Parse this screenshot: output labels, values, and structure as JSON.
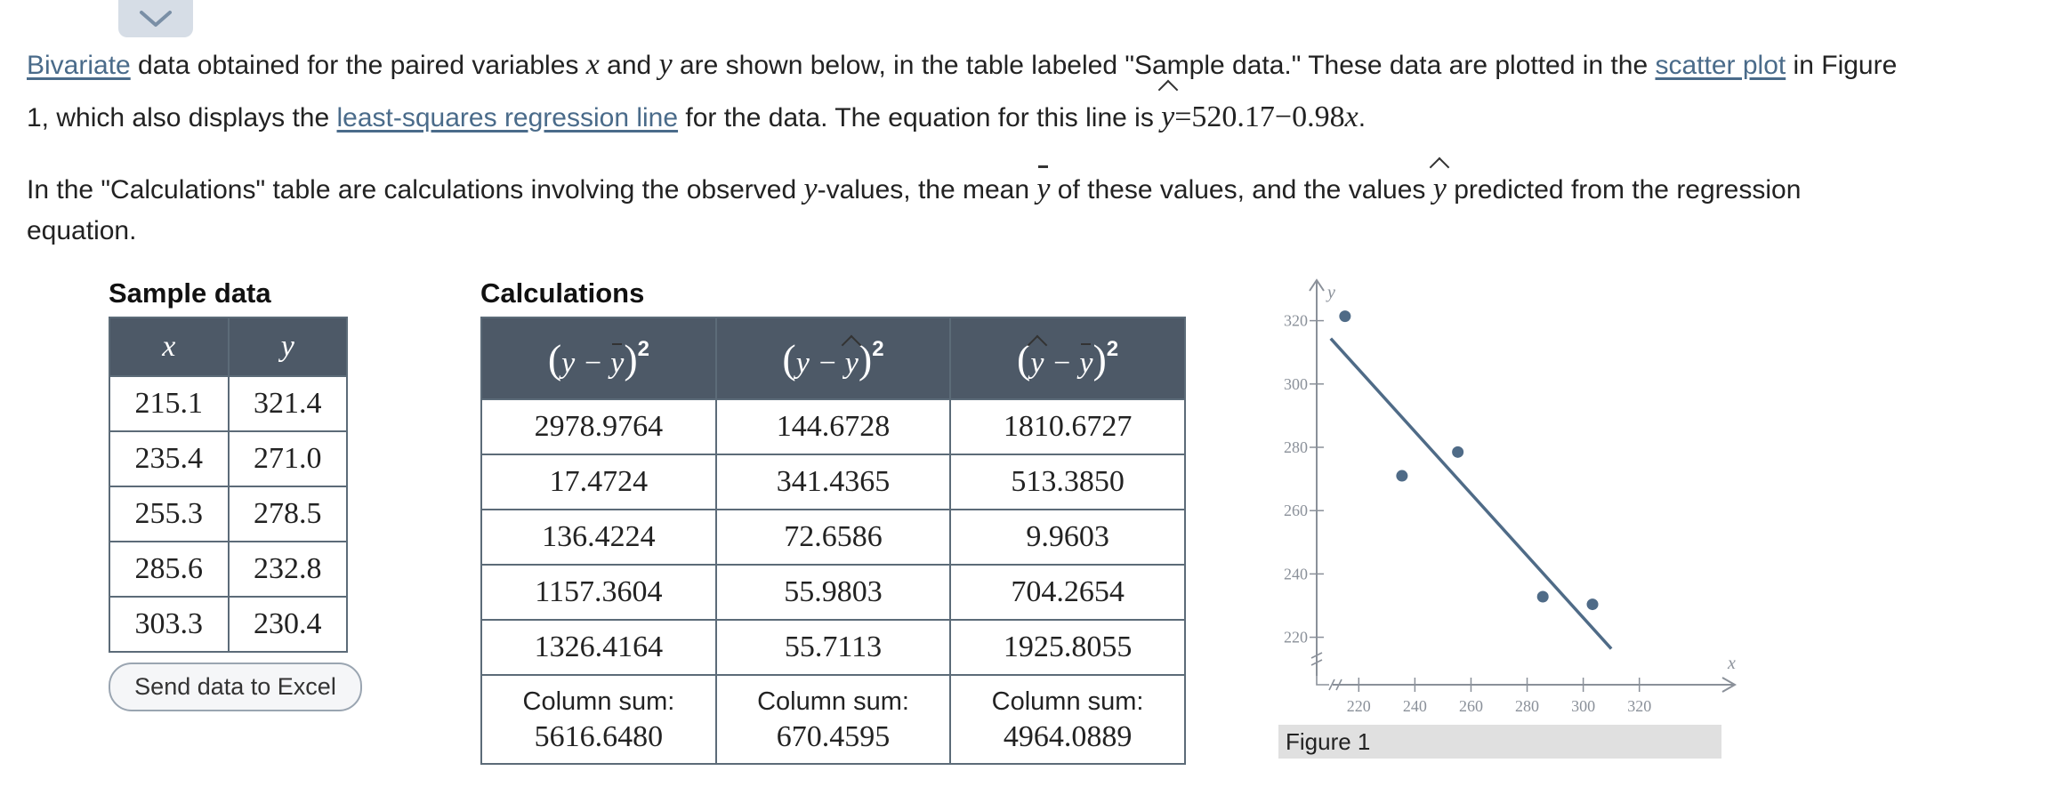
{
  "collapse": {
    "icon": "chevron-down-icon"
  },
  "intro": {
    "link_bivariate": "Bivariate",
    "t1": " data obtained for the paired variables ",
    "var_x": "x",
    "t2": " and ",
    "var_y": "y",
    "t3": " are shown below, in the table labeled \"Sample data.\" These data are plotted in the ",
    "link_scatter": "scatter plot",
    "t4": " in Figure",
    "t5": "1, which also displays the ",
    "link_lsrl": "least-squares regression line",
    "t6": " for the data. The equation for this line is ",
    "eq_y": "y",
    "eq_rhs": "=520.17−0.98",
    "eq_x": "x",
    "eq_end": "."
  },
  "para2": {
    "t1": "In the \"Calculations\" table are calculations involving the observed ",
    "y1": "y",
    "t2": "-values, the mean ",
    "ybar": "y",
    "t3": " of these values, and the values ",
    "yhat": "y",
    "t4": " predicted from the regression",
    "t5": "equation."
  },
  "sample": {
    "title": "Sample data",
    "headers": [
      "x",
      "y"
    ],
    "rows": [
      [
        "215.1",
        "321.4"
      ],
      [
        "235.4",
        "271.0"
      ],
      [
        "255.3",
        "278.5"
      ],
      [
        "285.6",
        "232.8"
      ],
      [
        "303.3",
        "230.4"
      ]
    ],
    "button": "Send data to Excel"
  },
  "calc": {
    "title": "Calculations",
    "rows": [
      [
        "2978.9764",
        "144.6728",
        "1810.6727"
      ],
      [
        "17.4724",
        "341.4365",
        "513.3850"
      ],
      [
        "136.4224",
        "72.6586",
        "9.9603"
      ],
      [
        "1157.3604",
        "55.9803",
        "704.2654"
      ],
      [
        "1326.4164",
        "55.7113",
        "1925.8055"
      ]
    ],
    "sum_label": "Column sum:",
    "sums": [
      "5616.6480",
      "670.4595",
      "4964.0889"
    ]
  },
  "figure": {
    "caption": "Figure 1",
    "chart_data": {
      "type": "scatter",
      "x": [
        215.1,
        235.4,
        255.3,
        285.6,
        303.3
      ],
      "y": [
        321.4,
        271.0,
        278.5,
        232.8,
        230.4
      ],
      "xlabel": "x",
      "ylabel": "y",
      "xticks": [
        220,
        240,
        260,
        280,
        300,
        320
      ],
      "yticks": [
        220,
        240,
        260,
        280,
        300,
        320
      ],
      "xlim": [
        205,
        335
      ],
      "ylim": [
        205,
        330
      ],
      "regression": {
        "intercept": 520.17,
        "slope": -0.98,
        "x_range": [
          210,
          310
        ]
      },
      "color": "#4f6b87",
      "axis_color": "#8a9099"
    }
  }
}
